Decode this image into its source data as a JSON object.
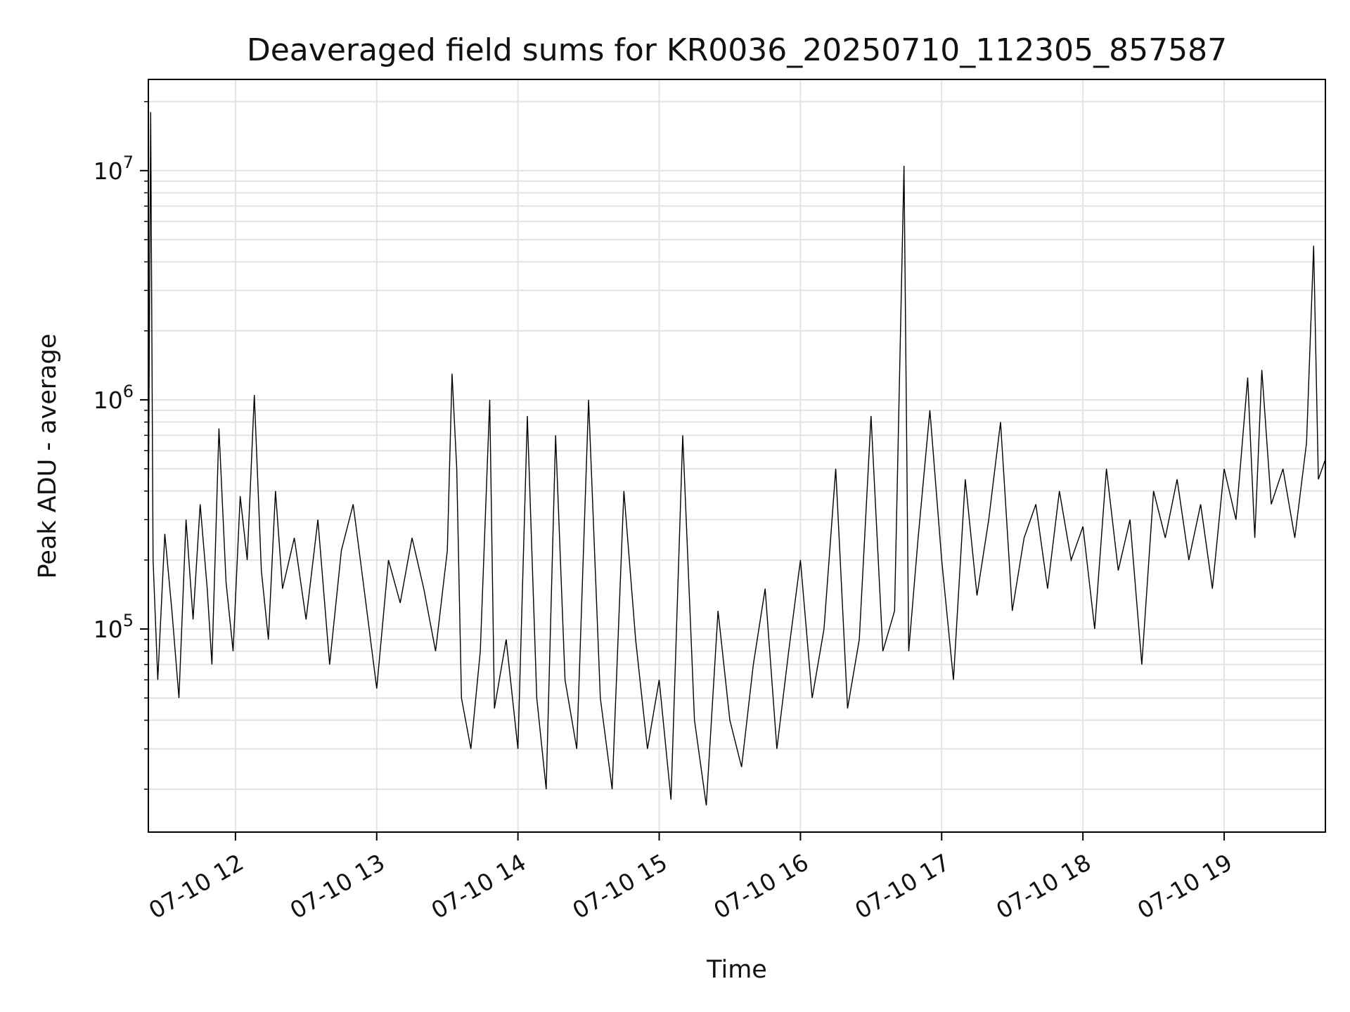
{
  "chart_data": {
    "type": "line",
    "title": "Deaveraged field sums for KR0036_20250710_112305_857587",
    "xlabel": "Time",
    "ylabel": "Peak ADU - average",
    "yscale": "log",
    "xlim": [
      "2025-07-10 11:23",
      "2025-07-10 19:43"
    ],
    "ylim": [
      13000,
      25000000
    ],
    "x_ticks": [
      "07-10 12",
      "07-10 13",
      "07-10 14",
      "07-10 15",
      "07-10 16",
      "07-10 17",
      "07-10 18",
      "07-10 19"
    ],
    "y_ticks": [
      {
        "base": "10",
        "exp": "5"
      },
      {
        "base": "10",
        "exp": "6"
      },
      {
        "base": "10",
        "exp": "7"
      }
    ],
    "grid": true,
    "color": "#000000",
    "series": [
      {
        "values": [
          [
            "2025-07-10 11:23",
            300000
          ],
          [
            "2025-07-10 11:24",
            18000000
          ],
          [
            "2025-07-10 11:25",
            200000
          ],
          [
            "2025-07-10 11:27",
            60000
          ],
          [
            "2025-07-10 11:30",
            260000
          ],
          [
            "2025-07-10 11:33",
            120000
          ],
          [
            "2025-07-10 11:36",
            50000
          ],
          [
            "2025-07-10 11:39",
            300000
          ],
          [
            "2025-07-10 11:42",
            110000
          ],
          [
            "2025-07-10 11:45",
            350000
          ],
          [
            "2025-07-10 11:48",
            150000
          ],
          [
            "2025-07-10 11:50",
            70000
          ],
          [
            "2025-07-10 11:53",
            750000
          ],
          [
            "2025-07-10 11:56",
            160000
          ],
          [
            "2025-07-10 11:59",
            80000
          ],
          [
            "2025-07-10 12:02",
            380000
          ],
          [
            "2025-07-10 12:05",
            200000
          ],
          [
            "2025-07-10 12:08",
            1050000
          ],
          [
            "2025-07-10 12:11",
            180000
          ],
          [
            "2025-07-10 12:14",
            90000
          ],
          [
            "2025-07-10 12:17",
            400000
          ],
          [
            "2025-07-10 12:20",
            150000
          ],
          [
            "2025-07-10 12:25",
            250000
          ],
          [
            "2025-07-10 12:30",
            110000
          ],
          [
            "2025-07-10 12:35",
            300000
          ],
          [
            "2025-07-10 12:40",
            70000
          ],
          [
            "2025-07-10 12:45",
            220000
          ],
          [
            "2025-07-10 12:50",
            350000
          ],
          [
            "2025-07-10 12:55",
            140000
          ],
          [
            "2025-07-10 13:00",
            55000
          ],
          [
            "2025-07-10 13:05",
            200000
          ],
          [
            "2025-07-10 13:10",
            130000
          ],
          [
            "2025-07-10 13:15",
            250000
          ],
          [
            "2025-07-10 13:20",
            150000
          ],
          [
            "2025-07-10 13:25",
            80000
          ],
          [
            "2025-07-10 13:30",
            220000
          ],
          [
            "2025-07-10 13:32",
            1300000
          ],
          [
            "2025-07-10 13:34",
            500000
          ],
          [
            "2025-07-10 13:36",
            50000
          ],
          [
            "2025-07-10 13:40",
            30000
          ],
          [
            "2025-07-10 13:44",
            80000
          ],
          [
            "2025-07-10 13:48",
            1000000
          ],
          [
            "2025-07-10 13:50",
            45000
          ],
          [
            "2025-07-10 13:55",
            90000
          ],
          [
            "2025-07-10 14:00",
            30000
          ],
          [
            "2025-07-10 14:04",
            850000
          ],
          [
            "2025-07-10 14:08",
            50000
          ],
          [
            "2025-07-10 14:12",
            20000
          ],
          [
            "2025-07-10 14:16",
            700000
          ],
          [
            "2025-07-10 14:20",
            60000
          ],
          [
            "2025-07-10 14:25",
            30000
          ],
          [
            "2025-07-10 14:30",
            1000000
          ],
          [
            "2025-07-10 14:35",
            50000
          ],
          [
            "2025-07-10 14:40",
            20000
          ],
          [
            "2025-07-10 14:45",
            400000
          ],
          [
            "2025-07-10 14:50",
            90000
          ],
          [
            "2025-07-10 14:55",
            30000
          ],
          [
            "2025-07-10 15:00",
            60000
          ],
          [
            "2025-07-10 15:05",
            18000
          ],
          [
            "2025-07-10 15:10",
            700000
          ],
          [
            "2025-07-10 15:15",
            40000
          ],
          [
            "2025-07-10 15:20",
            17000
          ],
          [
            "2025-07-10 15:25",
            120000
          ],
          [
            "2025-07-10 15:30",
            40000
          ],
          [
            "2025-07-10 15:35",
            25000
          ],
          [
            "2025-07-10 15:40",
            70000
          ],
          [
            "2025-07-10 15:45",
            150000
          ],
          [
            "2025-07-10 15:50",
            30000
          ],
          [
            "2025-07-10 15:55",
            80000
          ],
          [
            "2025-07-10 16:00",
            200000
          ],
          [
            "2025-07-10 16:05",
            50000
          ],
          [
            "2025-07-10 16:10",
            100000
          ],
          [
            "2025-07-10 16:15",
            500000
          ],
          [
            "2025-07-10 16:20",
            45000
          ],
          [
            "2025-07-10 16:25",
            90000
          ],
          [
            "2025-07-10 16:30",
            850000
          ],
          [
            "2025-07-10 16:35",
            80000
          ],
          [
            "2025-07-10 16:40",
            120000
          ],
          [
            "2025-07-10 16:44",
            10500000
          ],
          [
            "2025-07-10 16:46",
            80000
          ],
          [
            "2025-07-10 16:50",
            250000
          ],
          [
            "2025-07-10 16:55",
            900000
          ],
          [
            "2025-07-10 17:00",
            200000
          ],
          [
            "2025-07-10 17:05",
            60000
          ],
          [
            "2025-07-10 17:10",
            450000
          ],
          [
            "2025-07-10 17:15",
            140000
          ],
          [
            "2025-07-10 17:20",
            300000
          ],
          [
            "2025-07-10 17:25",
            800000
          ],
          [
            "2025-07-10 17:30",
            120000
          ],
          [
            "2025-07-10 17:35",
            250000
          ],
          [
            "2025-07-10 17:40",
            350000
          ],
          [
            "2025-07-10 17:45",
            150000
          ],
          [
            "2025-07-10 17:50",
            400000
          ],
          [
            "2025-07-10 17:55",
            200000
          ],
          [
            "2025-07-10 18:00",
            280000
          ],
          [
            "2025-07-10 18:05",
            100000
          ],
          [
            "2025-07-10 18:10",
            500000
          ],
          [
            "2025-07-10 18:15",
            180000
          ],
          [
            "2025-07-10 18:20",
            300000
          ],
          [
            "2025-07-10 18:25",
            70000
          ],
          [
            "2025-07-10 18:30",
            400000
          ],
          [
            "2025-07-10 18:35",
            250000
          ],
          [
            "2025-07-10 18:40",
            450000
          ],
          [
            "2025-07-10 18:45",
            200000
          ],
          [
            "2025-07-10 18:50",
            350000
          ],
          [
            "2025-07-10 18:55",
            150000
          ],
          [
            "2025-07-10 19:00",
            500000
          ],
          [
            "2025-07-10 19:05",
            300000
          ],
          [
            "2025-07-10 19:10",
            1250000
          ],
          [
            "2025-07-10 19:13",
            250000
          ],
          [
            "2025-07-10 19:16",
            1350000
          ],
          [
            "2025-07-10 19:20",
            350000
          ],
          [
            "2025-07-10 19:25",
            500000
          ],
          [
            "2025-07-10 19:30",
            250000
          ],
          [
            "2025-07-10 19:35",
            650000
          ],
          [
            "2025-07-10 19:38",
            4700000
          ],
          [
            "2025-07-10 19:40",
            450000
          ],
          [
            "2025-07-10 19:43",
            550000
          ]
        ]
      }
    ]
  }
}
